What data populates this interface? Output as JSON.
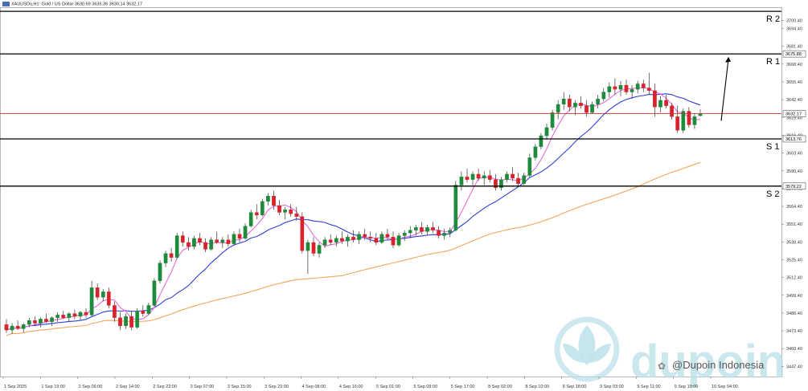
{
  "header": {
    "symbol_line": "XAUUSDu,H1: Gold / US Dollar  3630.69 3635.36 3630.14 3632.17"
  },
  "chart_data": {
    "type": "candlestick",
    "title": "XAUUSDu,H1: Gold / US Dollar",
    "ohlc_readout": "3630.69 3635.36 3630.14 3632.17",
    "ylim": [
      3440,
      3710
    ],
    "y_ticks": [
      "3700.40",
      "3694.40",
      "3681.40",
      "3668.40",
      "3655.40",
      "3642.40",
      "3629.40",
      "3616.40",
      "3603.40",
      "3590.40",
      "3577.40",
      "3564.40",
      "3551.40",
      "3538.40",
      "3525.40",
      "3512.40",
      "3499.40",
      "3486.40",
      "3473.40",
      "3460.40",
      "3447.40"
    ],
    "x_ticks": [
      "1 Sep 2025",
      "1 Sep 19:00",
      "2 Sep 06:00",
      "2 Sep 14:00",
      "2 Sep 22:00",
      "3 Sep 07:00",
      "3 Sep 15:00",
      "3 Sep 23:00",
      "4 Sep 08:00",
      "4 Sep 16:00",
      "5 Sep 01:00",
      "5 Sep 09:00",
      "5 Sep 17:00",
      "8 Sep 02:00",
      "8 Sep 10:00",
      "8 Sep 18:00",
      "9 Sep 03:00",
      "9 Sep 11:00",
      "9 Sep 19:00",
      "10 Sep 04:00"
    ],
    "price_tags": [
      {
        "value": 3675.88,
        "text": "3675.88"
      },
      {
        "value": 3632.17,
        "text": "3632.17"
      },
      {
        "value": 3613.76,
        "text": "3613.76"
      },
      {
        "value": 3579.22,
        "text": "3579.22"
      }
    ],
    "levels": [
      {
        "name": "R 2",
        "value": 3707.0,
        "color": "#000000"
      },
      {
        "name": "R 1",
        "value": 3675.88,
        "color": "#000000"
      },
      {
        "name": "S 1",
        "value": 3613.76,
        "color": "#000000"
      },
      {
        "name": "S 2",
        "value": 3579.22,
        "color": "#000000"
      }
    ],
    "current_price": {
      "value": 3632.17,
      "color": "#c0392b"
    },
    "candles": [
      [
        3478,
        3482,
        3472,
        3474
      ],
      [
        3474,
        3479,
        3471,
        3477
      ],
      [
        3477,
        3481,
        3474,
        3475
      ],
      [
        3475,
        3479,
        3472,
        3478
      ],
      [
        3478,
        3483,
        3476,
        3481
      ],
      [
        3481,
        3484,
        3477,
        3479
      ],
      [
        3479,
        3483,
        3476,
        3482
      ],
      [
        3482,
        3486,
        3479,
        3480
      ],
      [
        3480,
        3484,
        3477,
        3483
      ],
      [
        3483,
        3487,
        3480,
        3485
      ],
      [
        3485,
        3488,
        3482,
        3483
      ],
      [
        3483,
        3487,
        3480,
        3486
      ],
      [
        3486,
        3489,
        3482,
        3484
      ],
      [
        3484,
        3488,
        3481,
        3487
      ],
      [
        3487,
        3490,
        3483,
        3485
      ],
      [
        3485,
        3510,
        3484,
        3505
      ],
      [
        3505,
        3508,
        3496,
        3498
      ],
      [
        3498,
        3504,
        3495,
        3502
      ],
      [
        3502,
        3505,
        3490,
        3492
      ],
      [
        3492,
        3495,
        3480,
        3483
      ],
      [
        3483,
        3487,
        3474,
        3477
      ],
      [
        3477,
        3486,
        3475,
        3484
      ],
      [
        3484,
        3488,
        3474,
        3476
      ],
      [
        3476,
        3490,
        3475,
        3488
      ],
      [
        3488,
        3492,
        3484,
        3486
      ],
      [
        3486,
        3494,
        3485,
        3492
      ],
      [
        3492,
        3512,
        3491,
        3510
      ],
      [
        3510,
        3525,
        3508,
        3523
      ],
      [
        3523,
        3532,
        3520,
        3530
      ],
      [
        3530,
        3534,
        3524,
        3527
      ],
      [
        3527,
        3545,
        3526,
        3543
      ],
      [
        3543,
        3546,
        3535,
        3538
      ],
      [
        3538,
        3542,
        3532,
        3535
      ],
      [
        3535,
        3543,
        3533,
        3541
      ],
      [
        3541,
        3545,
        3536,
        3538
      ],
      [
        3538,
        3541,
        3531,
        3533
      ],
      [
        3533,
        3542,
        3532,
        3540
      ],
      [
        3540,
        3546,
        3537,
        3538
      ],
      [
        3538,
        3542,
        3534,
        3540
      ],
      [
        3540,
        3544,
        3535,
        3537
      ],
      [
        3537,
        3546,
        3536,
        3544
      ],
      [
        3544,
        3548,
        3538,
        3541
      ],
      [
        3541,
        3552,
        3540,
        3550
      ],
      [
        3550,
        3562,
        3549,
        3560
      ],
      [
        3560,
        3566,
        3555,
        3558
      ],
      [
        3558,
        3570,
        3557,
        3568
      ],
      [
        3568,
        3574,
        3565,
        3572
      ],
      [
        3572,
        3576,
        3562,
        3565
      ],
      [
        3565,
        3569,
        3558,
        3560
      ],
      [
        3560,
        3564,
        3555,
        3562
      ],
      [
        3562,
        3566,
        3557,
        3559
      ],
      [
        3559,
        3564,
        3554,
        3557
      ],
      [
        3557,
        3560,
        3530,
        3532
      ],
      [
        3532,
        3540,
        3515,
        3538
      ],
      [
        3538,
        3542,
        3528,
        3530
      ],
      [
        3530,
        3538,
        3527,
        3536
      ],
      [
        3536,
        3542,
        3534,
        3540
      ],
      [
        3540,
        3544,
        3536,
        3538
      ],
      [
        3538,
        3543,
        3535,
        3541
      ],
      [
        3541,
        3546,
        3537,
        3539
      ],
      [
        3539,
        3544,
        3535,
        3542
      ],
      [
        3542,
        3547,
        3538,
        3540
      ],
      [
        3540,
        3546,
        3537,
        3544
      ],
      [
        3544,
        3548,
        3540,
        3542
      ],
      [
        3542,
        3546,
        3538,
        3541
      ],
      [
        3541,
        3545,
        3536,
        3538
      ],
      [
        3538,
        3546,
        3537,
        3544
      ],
      [
        3544,
        3548,
        3540,
        3542
      ],
      [
        3542,
        3546,
        3534,
        3536
      ],
      [
        3536,
        3545,
        3535,
        3543
      ],
      [
        3543,
        3547,
        3539,
        3545
      ],
      [
        3545,
        3550,
        3541,
        3547
      ],
      [
        3547,
        3551,
        3543,
        3549
      ],
      [
        3549,
        3553,
        3544,
        3546
      ],
      [
        3546,
        3551,
        3543,
        3549
      ],
      [
        3549,
        3553,
        3545,
        3547
      ],
      [
        3547,
        3550,
        3541,
        3543
      ],
      [
        3543,
        3548,
        3540,
        3545
      ],
      [
        3545,
        3549,
        3542,
        3547
      ],
      [
        3547,
        3583,
        3546,
        3580
      ],
      [
        3580,
        3590,
        3576,
        3586
      ],
      [
        3586,
        3592,
        3582,
        3584
      ],
      [
        3584,
        3590,
        3580,
        3588
      ],
      [
        3588,
        3592,
        3583,
        3585
      ],
      [
        3585,
        3590,
        3580,
        3587
      ],
      [
        3587,
        3591,
        3582,
        3584
      ],
      [
        3584,
        3588,
        3576,
        3578
      ],
      [
        3578,
        3586,
        3576,
        3584
      ],
      [
        3584,
        3590,
        3582,
        3588
      ],
      [
        3588,
        3593,
        3583,
        3585
      ],
      [
        3585,
        3589,
        3579,
        3581
      ],
      [
        3581,
        3589,
        3580,
        3587
      ],
      [
        3587,
        3603,
        3586,
        3600
      ],
      [
        3600,
        3610,
        3598,
        3608
      ],
      [
        3608,
        3618,
        3606,
        3616
      ],
      [
        3616,
        3625,
        3613,
        3622
      ],
      [
        3622,
        3635,
        3620,
        3633
      ],
      [
        3633,
        3642,
        3628,
        3639
      ],
      [
        3639,
        3648,
        3635,
        3643
      ],
      [
        3643,
        3646,
        3634,
        3637
      ],
      [
        3637,
        3642,
        3631,
        3640
      ],
      [
        3640,
        3645,
        3636,
        3638
      ],
      [
        3638,
        3642,
        3630,
        3633
      ],
      [
        3633,
        3641,
        3632,
        3639
      ],
      [
        3639,
        3646,
        3636,
        3643
      ],
      [
        3643,
        3651,
        3641,
        3648
      ],
      [
        3648,
        3655,
        3644,
        3652
      ],
      [
        3652,
        3658,
        3646,
        3650
      ],
      [
        3650,
        3656,
        3645,
        3653
      ],
      [
        3653,
        3657,
        3646,
        3648
      ],
      [
        3648,
        3653,
        3643,
        3650
      ],
      [
        3650,
        3656,
        3647,
        3654
      ],
      [
        3654,
        3657,
        3648,
        3651
      ],
      [
        3651,
        3662,
        3646,
        3649
      ],
      [
        3649,
        3654,
        3630,
        3637
      ],
      [
        3637,
        3645,
        3633,
        3642
      ],
      [
        3642,
        3646,
        3636,
        3638
      ],
      [
        3638,
        3640,
        3628,
        3630
      ],
      [
        3630,
        3638,
        3618,
        3620
      ],
      [
        3620,
        3636,
        3618,
        3634
      ],
      [
        3634,
        3637,
        3622,
        3624
      ],
      [
        3624,
        3632,
        3621,
        3630
      ],
      [
        3630.69,
        3635.36,
        3630.14,
        3632.17
      ]
    ],
    "candle_colors": {
      "up": "#1e8a3c",
      "down": "#d9222a"
    },
    "series": [
      {
        "kind": "ma_fast",
        "color": "#e86ad8"
      },
      {
        "kind": "ma_mid",
        "color": "#2f3fd6"
      },
      {
        "kind": "ma_slow",
        "color": "#f5a55a"
      }
    ],
    "grid": false
  },
  "annotations": {
    "arrow_color": "#000000"
  },
  "watermark": {
    "text": "Dupoin Indonesia",
    "handle": "@Dupoin Indonesia",
    "brand": "dupoin",
    "color": "#b8e0e8"
  }
}
